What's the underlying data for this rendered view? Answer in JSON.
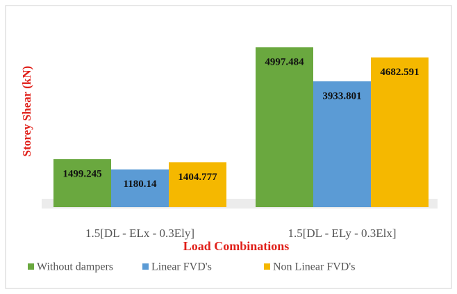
{
  "chart_data": {
    "type": "bar",
    "y_label": "Storey Shear (kN)",
    "x_label": "Load Combinations",
    "categories": [
      "1.5[DL - ELx - 0.3Ely]",
      "1.5[DL - ELy - 0.3Elx]"
    ],
    "series": [
      {
        "name": "Without dampers",
        "color": "#6aa83f",
        "values": [
          1499.245,
          4997.484
        ]
      },
      {
        "name": "Linear FVD's",
        "color": "#5b9bd5",
        "values": [
          1180.14,
          3933.801
        ]
      },
      {
        "name": "Non Linear FVD's",
        "color": "#f5b800",
        "values": [
          1404.777,
          4682.591
        ]
      }
    ],
    "ylim": [
      0,
      6000
    ],
    "legend": "bottom"
  }
}
